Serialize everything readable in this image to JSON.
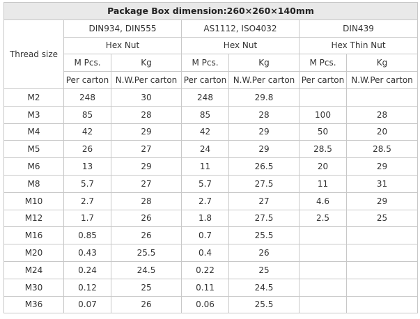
{
  "title": "Package Box dimension:260×260×140mm",
  "standards": [
    "DIN934, DIN555",
    "AS1112, ISO4032",
    "DIN439"
  ],
  "products": [
    "Hex Nut",
    "Hex Nut",
    "Hex Thin Nut"
  ],
  "thread_size_label": "Thread size",
  "unit_headers": [
    "M Pcs.",
    "Kg",
    "M Pcs.",
    "Kg",
    "M Pcs.",
    "Kg"
  ],
  "sub_headers": [
    "Per carton",
    "N.W.Per carton",
    "Per carton",
    "N.W.Per carton",
    "Per carton",
    "N.W.Per carton"
  ],
  "rows": [
    [
      "M2",
      "248",
      "30",
      "248",
      "29.8",
      "",
      ""
    ],
    [
      "M3",
      "85",
      "28",
      "85",
      "28",
      "100",
      "28"
    ],
    [
      "M4",
      "42",
      "29",
      "42",
      "29",
      "50",
      "20"
    ],
    [
      "M5",
      "26",
      "27",
      "24",
      "29",
      "28.5",
      "28.5"
    ],
    [
      "M6",
      "13",
      "29",
      "11",
      "26.5",
      "20",
      "29"
    ],
    [
      "M8",
      "5.7",
      "27",
      "5.7",
      "27.5",
      "11",
      "31"
    ],
    [
      "M10",
      "2.7",
      "28",
      "2.7",
      "27",
      "4.6",
      "29"
    ],
    [
      "M12",
      "1.7",
      "26",
      "1.8",
      "27.5",
      "2.5",
      "25"
    ],
    [
      "M16",
      "0.85",
      "26",
      "0.7",
      "25.5",
      "",
      ""
    ],
    [
      "M20",
      "0.43",
      "25.5",
      "0.4",
      "26",
      "",
      ""
    ],
    [
      "M24",
      "0.24",
      "24.5",
      "0.22",
      "25",
      "",
      ""
    ],
    [
      "M30",
      "0.12",
      "25",
      "0.11",
      "24.5",
      "",
      ""
    ],
    [
      "M36",
      "0.07",
      "26",
      "0.06",
      "25.5",
      "",
      ""
    ]
  ]
}
